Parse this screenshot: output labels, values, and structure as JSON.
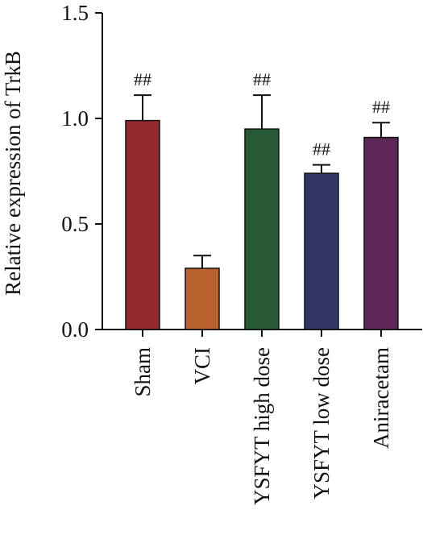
{
  "chart_data": {
    "type": "bar",
    "categories": [
      "Sham",
      "VCI",
      "YSFYT high dose",
      "YSFYT low dose",
      "Aniracetam"
    ],
    "values": [
      0.99,
      0.29,
      0.95,
      0.74,
      0.91
    ],
    "errors": [
      0.12,
      0.06,
      0.16,
      0.04,
      0.07
    ],
    "annotations": [
      "##",
      "",
      "##",
      "##",
      "##"
    ],
    "colors": [
      "#922a2e",
      "#b8622e",
      "#255a35",
      "#333664",
      "#5c2656"
    ],
    "ylabel": "Relative expression of TrkB",
    "xlabel": "",
    "ylim": [
      0,
      1.5
    ],
    "yticks": [
      0.0,
      0.5,
      1.0,
      1.5
    ],
    "ytick_labels": [
      "0.0",
      "0.5",
      "1.0",
      "1.5"
    ],
    "grid": false,
    "legend": "none"
  }
}
